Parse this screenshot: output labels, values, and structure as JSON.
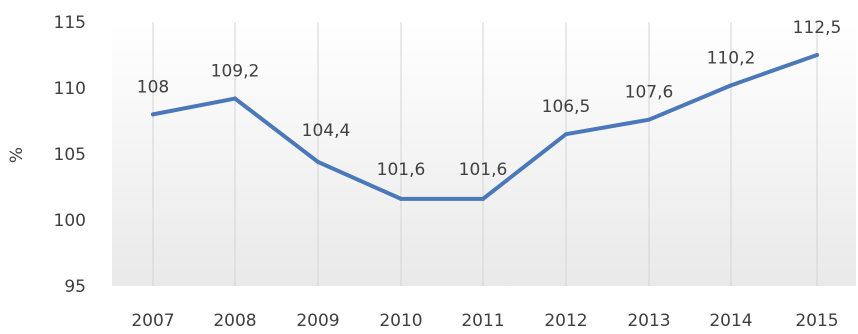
{
  "chart_data": {
    "type": "line",
    "title": "",
    "xlabel": "",
    "ylabel": "%",
    "x": [
      "2007",
      "2008",
      "2009",
      "2010",
      "2011",
      "2012",
      "2013",
      "2014",
      "2015"
    ],
    "series": [
      {
        "values": [
          108,
          109.2,
          104.4,
          101.6,
          101.6,
          106.5,
          107.6,
          110.2,
          112.5
        ],
        "labels": [
          "108",
          "109,2",
          "104,4",
          "101,6",
          "101,6",
          "106,5",
          "107,6",
          "110,2",
          "112,5"
        ],
        "color": "#4a78b8"
      }
    ],
    "ylim": [
      95,
      115
    ],
    "yticks": [
      "95",
      "100",
      "105",
      "110",
      "115"
    ],
    "grid": "vertical",
    "legend": "none"
  }
}
